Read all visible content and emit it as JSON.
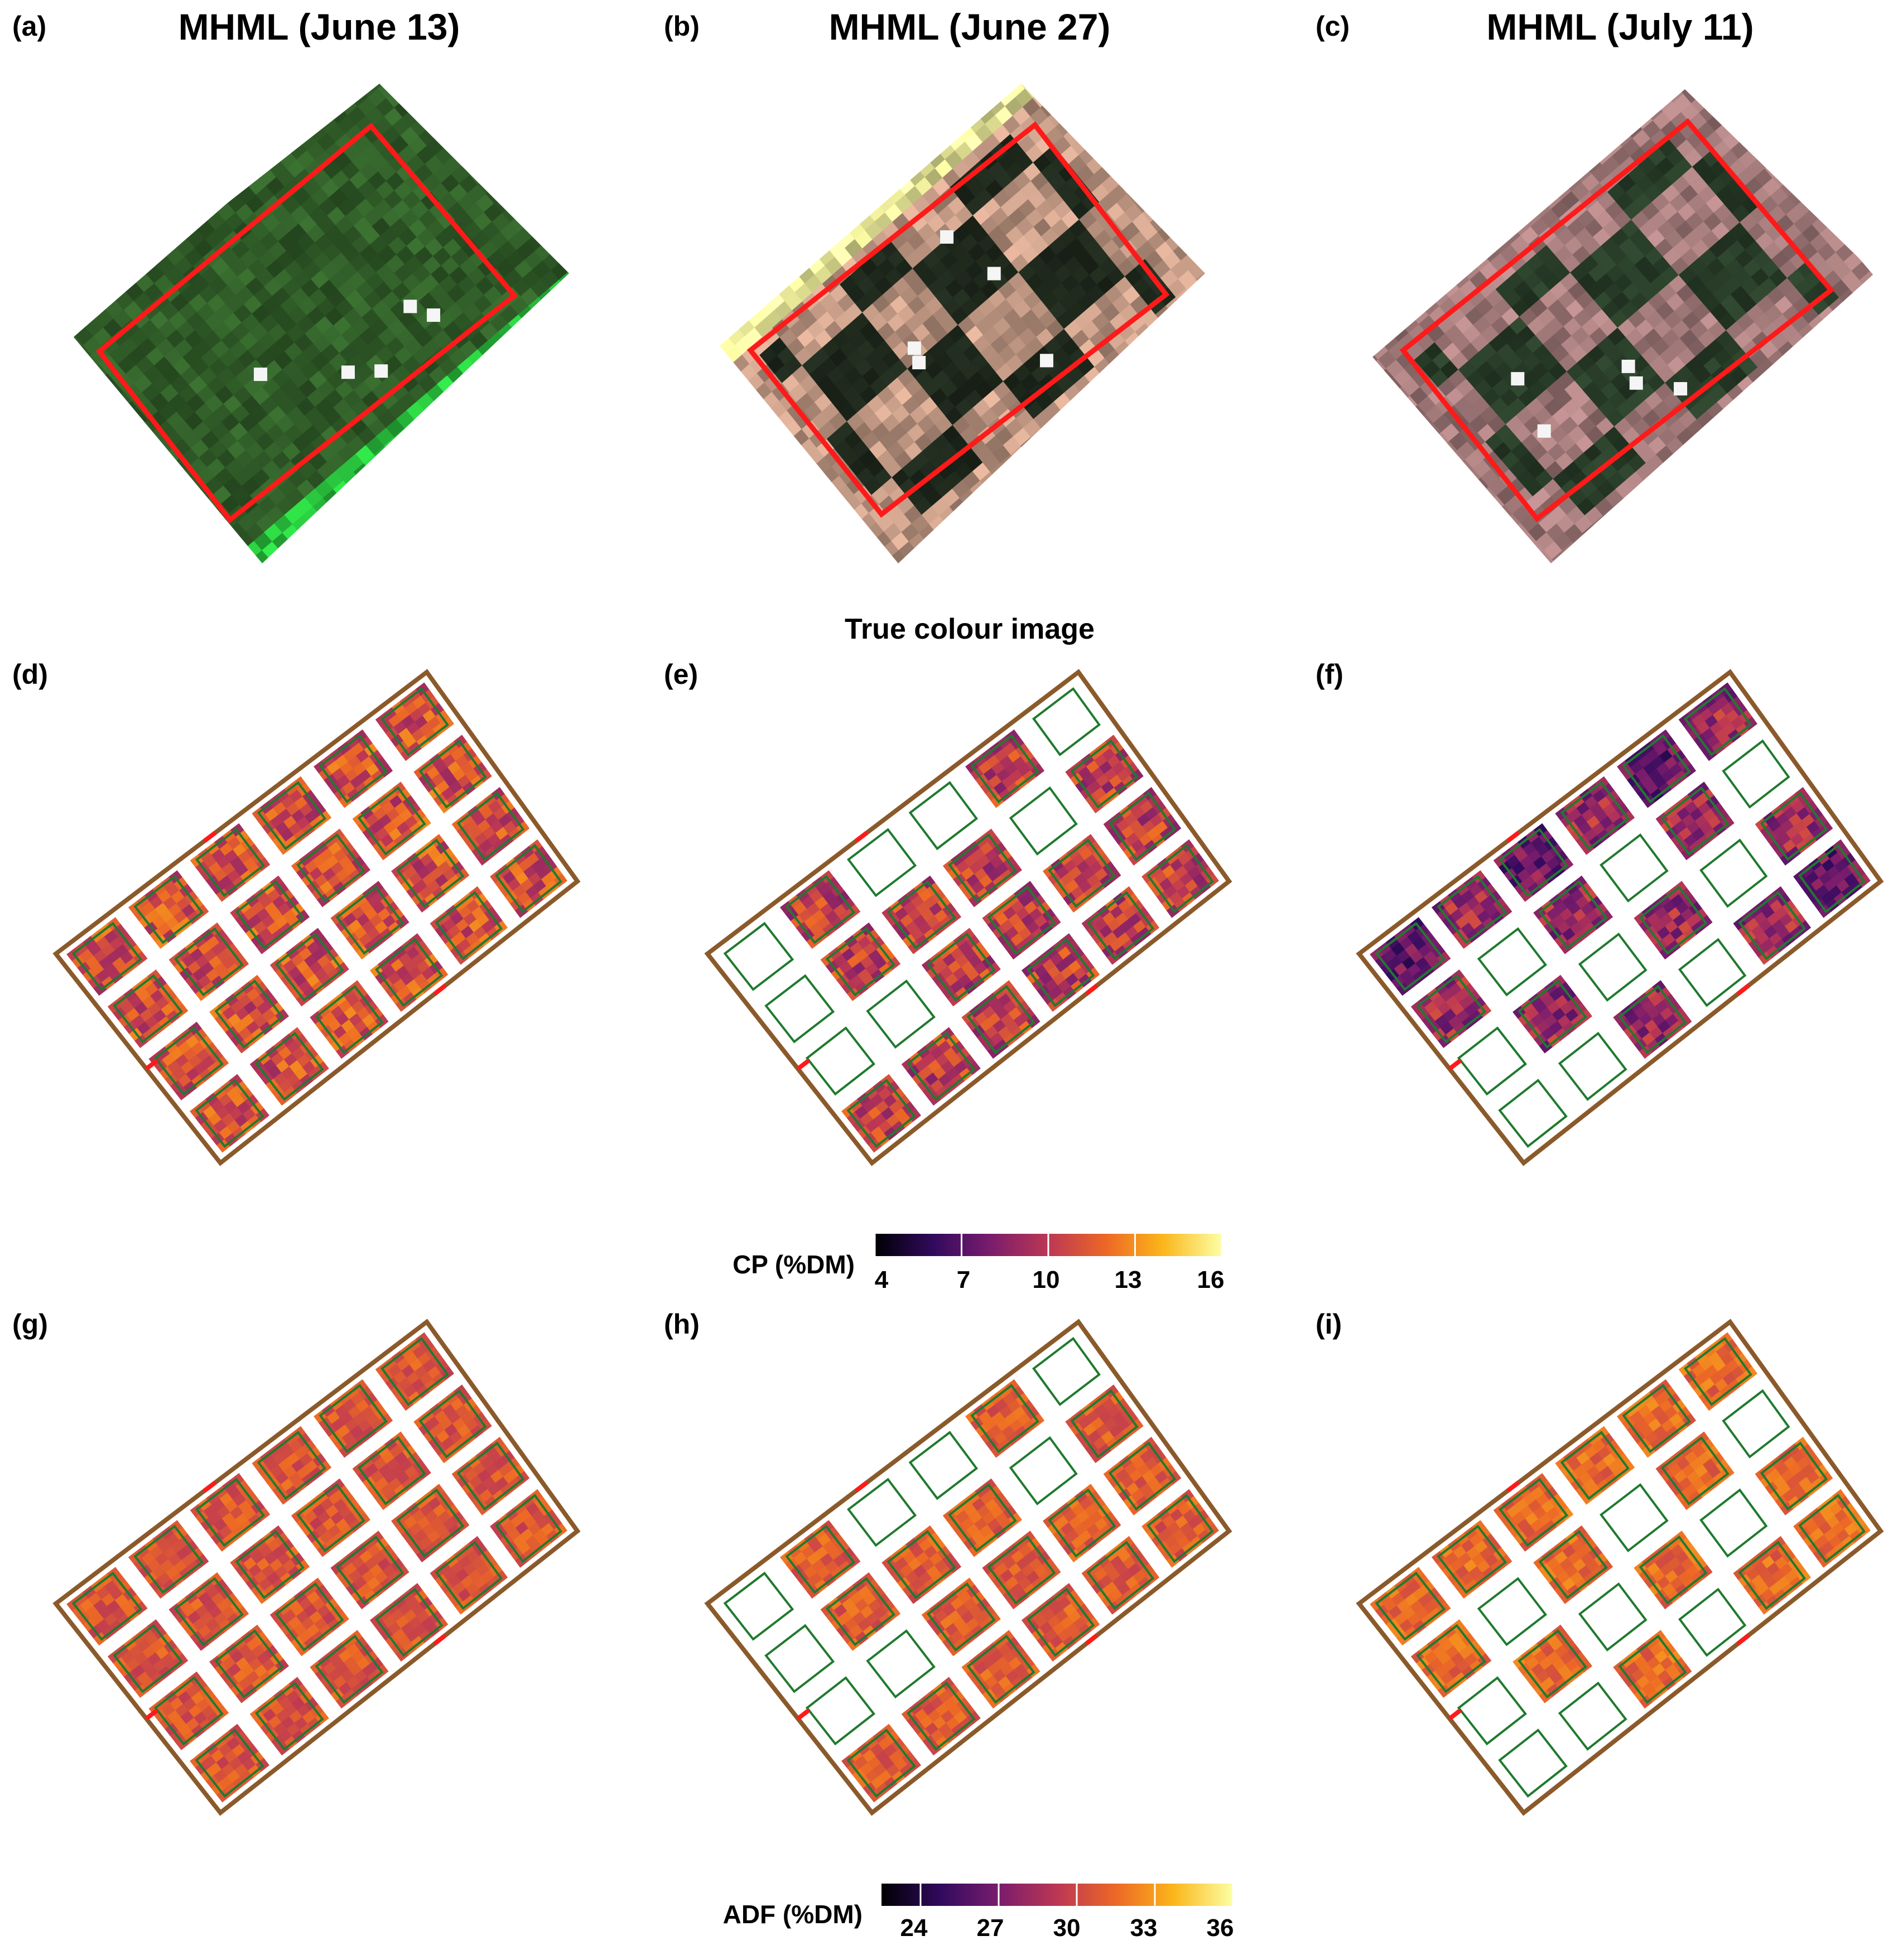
{
  "panels": [
    {
      "label": "(a)",
      "title": "MHML (June 13)",
      "kind": "true-colour",
      "scene": "green"
    },
    {
      "label": "(b)",
      "title": "MHML (June 27)",
      "kind": "true-colour",
      "scene": "checker"
    },
    {
      "label": "(c)",
      "title": "MHML (July 11)",
      "kind": "true-colour",
      "scene": "pink"
    },
    {
      "label": "(d)",
      "kind": "CP-map",
      "date": "June 13"
    },
    {
      "label": "(e)",
      "kind": "CP-map",
      "date": "June 27"
    },
    {
      "label": "(f)",
      "kind": "CP-map",
      "date": "July 11"
    },
    {
      "label": "(g)",
      "kind": "ADF-map",
      "date": "June 13"
    },
    {
      "label": "(h)",
      "kind": "ADF-map",
      "date": "June 27"
    },
    {
      "label": "(i)",
      "kind": "ADF-map",
      "date": "July 11"
    }
  ],
  "row_caption": "True colour image",
  "colorbars": {
    "cp": {
      "title": "CP (%DM)",
      "ticks": [
        "4",
        "7",
        "10",
        "13",
        "16"
      ],
      "range": [
        4,
        16
      ]
    },
    "adf": {
      "title": "ADF (%DM)",
      "ticks": [
        "24",
        "27",
        "30",
        "33",
        "36"
      ],
      "range": [
        22.5,
        36
      ]
    }
  },
  "colors": {
    "aoi_outline": "#ff1a1a",
    "plot_boundary": "#8b5a2b",
    "paddock_outline": "#1f7a2e",
    "colormap": [
      "#000004",
      "#320a5e",
      "#781c6d",
      "#bc3754",
      "#ed6925",
      "#fbb61a",
      "#fcffa4"
    ]
  }
}
